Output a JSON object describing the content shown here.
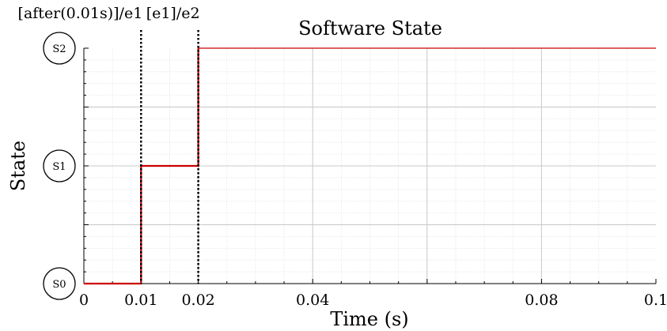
{
  "chart_data": {
    "type": "line",
    "title": "Software State",
    "xlabel": "Time (s)",
    "ylabel": "State",
    "xlim": [
      0,
      0.1
    ],
    "ylim": [
      0,
      2
    ],
    "x_ticks": [
      {
        "value": 0,
        "label": "0"
      },
      {
        "value": 0.01,
        "label": "0.01"
      },
      {
        "value": 0.02,
        "label": "0.02"
      },
      {
        "value": 0.04,
        "label": "0.04"
      },
      {
        "value": 0.08,
        "label": "0.08"
      },
      {
        "value": 0.1,
        "label": "0.1"
      }
    ],
    "y_states": [
      {
        "value": 0,
        "label": "S0"
      },
      {
        "value": 1,
        "label": "S1"
      },
      {
        "value": 2,
        "label": "S2"
      }
    ],
    "grid": true,
    "series": [
      {
        "color": "#cc0000",
        "steps": [
          {
            "x": 0,
            "y": 0
          },
          {
            "x": 0.01,
            "y": 1
          },
          {
            "x": 0.02,
            "y": 2
          },
          {
            "x": 0.1,
            "y": 2
          }
        ]
      }
    ],
    "events": [
      {
        "x": 0.01,
        "label": "[after(0.01s)]/e1"
      },
      {
        "x": 0.02,
        "label": "[e1]/e2"
      }
    ]
  }
}
